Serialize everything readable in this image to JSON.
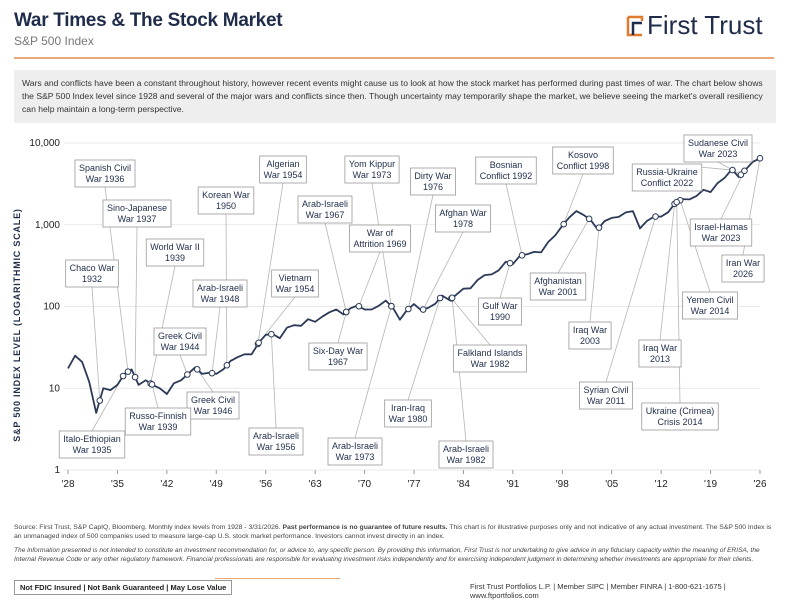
{
  "header": {
    "title": "War Times & The Stock Market",
    "subtitle": "S&P 500 Index",
    "logo": "First Trust"
  },
  "intro": "Wars and conflicts have been a constant throughout history, however recent events might cause us to look at how the stock market has performed during past times of war. The chart below shows the S&P 500 Index level since 1928 and several of the major wars and conflicts since then. Though uncertainty may temporarily shape the market, we believe seeing the market's overall resiliency can help maintain a long-term perspective.",
  "chart_data": {
    "type": "line",
    "y_label": "S&P 500 INDEX LEVEL (LOGARITHMIC SCALE)",
    "log_scale": true,
    "grid": true,
    "x": [
      1928,
      1929,
      1930,
      1931,
      1932,
      1933,
      1934,
      1935,
      1936,
      1937,
      1938,
      1939,
      1940,
      1941,
      1942,
      1943,
      1944,
      1945,
      1946,
      1947,
      1948,
      1949,
      1950,
      1951,
      1952,
      1953,
      1954,
      1955,
      1956,
      1957,
      1958,
      1959,
      1960,
      1961,
      1962,
      1963,
      1964,
      1965,
      1966,
      1967,
      1968,
      1969,
      1970,
      1971,
      1972,
      1973,
      1974,
      1975,
      1976,
      1977,
      1978,
      1979,
      1980,
      1981,
      1982,
      1983,
      1984,
      1985,
      1986,
      1987,
      1988,
      1989,
      1990,
      1991,
      1992,
      1993,
      1994,
      1995,
      1996,
      1997,
      1998,
      1999,
      2000,
      2001,
      2002,
      2003,
      2004,
      2005,
      2006,
      2007,
      2008,
      2009,
      2010,
      2011,
      2012,
      2013,
      2014,
      2015,
      2016,
      2017,
      2018,
      2019,
      2020,
      2021,
      2022,
      2023,
      2024,
      2025,
      2026
    ],
    "series": [
      {
        "name": "S&P 500 Index",
        "color": "#2c3a58",
        "values": [
          17.5,
          25,
          21,
          12,
          5,
          10,
          9.5,
          11,
          15,
          17,
          11,
          12.5,
          11,
          10,
          8.5,
          11.5,
          12.5,
          15,
          18,
          15,
          15.5,
          15,
          17,
          21.5,
          24,
          26,
          26,
          36,
          45,
          46,
          41,
          55,
          59,
          58,
          70,
          65,
          75,
          85,
          92,
          80,
          95,
          103,
          92,
          92,
          102,
          118,
          97,
          69,
          90,
          107,
          90,
          96,
          108,
          136,
          120,
          140,
          165,
          167,
          211,
          242,
          247,
          277,
          353,
          330,
          417,
          435,
          466,
          459,
          615,
          740,
          970,
          1229,
          1469,
          1320,
          1148,
          880,
          1112,
          1212,
          1248,
          1418,
          1468,
          903,
          1116,
          1258,
          1258,
          1426,
          1848,
          2059,
          2044,
          2239,
          2674,
          2507,
          3231,
          3756,
          4766,
          3840,
          4770,
          5882,
          6500
        ]
      }
    ],
    "xlim": [
      1928,
      2026
    ],
    "ylim": [
      1,
      10000
    ],
    "xticks": [
      {
        "value": 1928,
        "label": "'28"
      },
      {
        "value": 1935,
        "label": "'35"
      },
      {
        "value": 1942,
        "label": "'42"
      },
      {
        "value": 1949,
        "label": "'49"
      },
      {
        "value": 1956,
        "label": "'56"
      },
      {
        "value": 1963,
        "label": "'63"
      },
      {
        "value": 1970,
        "label": "'70"
      },
      {
        "value": 1977,
        "label": "'77"
      },
      {
        "value": 1984,
        "label": "'84"
      },
      {
        "value": 1991,
        "label": "'91"
      },
      {
        "value": 1998,
        "label": "'98"
      },
      {
        "value": 2005,
        "label": "'05"
      },
      {
        "value": 2012,
        "label": "'12"
      },
      {
        "value": 2019,
        "label": "'19"
      },
      {
        "value": 2026,
        "label": "'26"
      }
    ],
    "yticks": [
      1,
      10,
      100,
      {
        "value": 1000,
        "label": "1,000"
      },
      {
        "value": 10000,
        "label": "10,000"
      }
    ],
    "annotations": [
      {
        "text": [
          "Spanish Civil",
          "War 1936"
        ],
        "x": 1936.5
      },
      {
        "text": [
          "Sino-Japanese",
          "War 1937"
        ],
        "x": 1937.5
      },
      {
        "text": [
          "Chaco War",
          "1932"
        ],
        "x": 1932.5
      },
      {
        "text": [
          "World War II",
          "1939"
        ],
        "x": 1939.7
      },
      {
        "text": [
          "Korean War",
          "1950"
        ],
        "x": 1950.5
      },
      {
        "text": [
          "Algerian",
          "War 1954"
        ],
        "x": 1954.9
      },
      {
        "text": [
          "Greek Civil",
          "War 1944"
        ],
        "x": 1944.9
      },
      {
        "text": [
          "Arab-Israeli",
          "War 1948"
        ],
        "x": 1948.4
      },
      {
        "text": [
          "Vietnam",
          "War 1954"
        ],
        "x": 1955
      },
      {
        "text": [
          "Greek Civil",
          "War 1946"
        ],
        "x": 1946.3
      },
      {
        "text": [
          "Russo-Finnish",
          "War 1939"
        ],
        "x": 1939.9
      },
      {
        "text": [
          "Italo-Ethiopian",
          "War 1935"
        ],
        "x": 1935.8
      },
      {
        "text": [
          "Arab-Israeli",
          "War 1956"
        ],
        "x": 1956.8
      },
      {
        "text": [
          "Arab-Israeli",
          "War 1967"
        ],
        "x": 1967.4
      },
      {
        "text": [
          "Yom Kippur",
          "War 1973"
        ],
        "x": 1973.8
      },
      {
        "text": [
          "War of",
          "Attrition 1969"
        ],
        "x": 1969.2
      },
      {
        "text": [
          "Six-Day War",
          "1967"
        ],
        "x": 1967.4
      },
      {
        "text": [
          "Arab-Israeli",
          "War 1973"
        ],
        "x": 1973.8
      },
      {
        "text": [
          "Dirty War",
          "1976"
        ],
        "x": 1976.2
      },
      {
        "text": [
          "Afghan War",
          "1978"
        ],
        "x": 1978.3
      },
      {
        "text": [
          "Iran-Iraq",
          "War 1980"
        ],
        "x": 1980.7
      },
      {
        "text": [
          "Falkland Islands",
          "War 1982"
        ],
        "x": 1982.3
      },
      {
        "text": [
          "Arab-Israeli",
          "War 1982"
        ],
        "x": 1982.4
      },
      {
        "text": [
          "Bosnian",
          "Conflict 1992"
        ],
        "x": 1992.3
      },
      {
        "text": [
          "Gulf War",
          "1990"
        ],
        "x": 1990.6
      },
      {
        "text": [
          "Kosovo",
          "Conflict 1998"
        ],
        "x": 1998.2
      },
      {
        "text": [
          "Afghanistan",
          "War 2001"
        ],
        "x": 2001.8
      },
      {
        "text": [
          "Iraq War",
          "2003"
        ],
        "x": 2003.2
      },
      {
        "text": [
          "Syrian Civil",
          "War 2011"
        ],
        "x": 2011.2
      },
      {
        "text": [
          "Russia-Ukraine",
          "Conflict 2022"
        ],
        "x": 2022.1
      },
      {
        "text": [
          "Sudanese Civil",
          "War 2023"
        ],
        "x": 2023.3
      },
      {
        "text": [
          "Israel-Hamas",
          "War 2023"
        ],
        "x": 2023.8
      },
      {
        "text": [
          "Iran War",
          "2026"
        ],
        "x": 2026
      },
      {
        "text": [
          "Yemen Civil",
          "War 2014"
        ],
        "x": 2014.7
      },
      {
        "text": [
          "Iraq War",
          "2013"
        ],
        "x": 2013.9
      },
      {
        "text": [
          "Ukraine (Crimea)",
          "Crisis 2014"
        ],
        "x": 2014.2
      }
    ]
  },
  "footer": {
    "source": "Source: First Trust, S&P CapIQ, Bloomberg. Monthly index levels from 1928 - 3/31/2026.",
    "source_emphasis": "Past performance is no guarantee of future results.",
    "source_rest": "This chart is for illustrative purposes only and not indicative of any actual investment. The S&P 500 Index is an unmanaged index of 500 companies used to measure large-cap U.S. stock market performance. Investors cannot invest directly in an index.",
    "disclaimer": "The information presented is not intended to constitute an investment recommendation for, or advice to, any specific person. By providing this information, First Trust is not undertaking to give advice in any fiduciary capacity within the meaning of ERISA, the Internal Revenue Code or any other regulatory framework. Financial professionals are responsible for evaluating investment risks independently and for exercising independent judgment in determining whether investments are appropriate for their clients.",
    "badges": "Not FDIC Insured | Not Bank Guaranteed | May Lose Value",
    "contact": "First Trust Portfolios L.P. | Member SIPC | Member FINRA | 1-800-621-1675 | www.ftportfolios.com"
  }
}
